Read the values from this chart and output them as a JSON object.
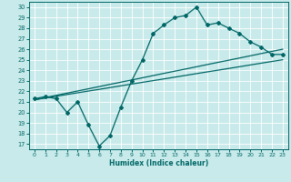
{
  "xlabel": "Humidex (Indice chaleur)",
  "bg_color": "#c8eaea",
  "grid_color": "#ffffff",
  "line_color": "#006666",
  "xlim": [
    -0.5,
    23.5
  ],
  "ylim": [
    16.5,
    30.5
  ],
  "yticks": [
    17,
    18,
    19,
    20,
    21,
    22,
    23,
    24,
    25,
    26,
    27,
    28,
    29,
    30
  ],
  "xticks": [
    0,
    1,
    2,
    3,
    4,
    5,
    6,
    7,
    8,
    9,
    10,
    11,
    12,
    13,
    14,
    15,
    16,
    17,
    18,
    19,
    20,
    21,
    22,
    23
  ],
  "line1_x": [
    0,
    1,
    2,
    3,
    4,
    5,
    6,
    7,
    8,
    9,
    10,
    11,
    12,
    13,
    14,
    15,
    16,
    17,
    18,
    19,
    20,
    21,
    22,
    23
  ],
  "line1_y": [
    21.3,
    21.5,
    21.3,
    20.0,
    21.0,
    18.8,
    16.8,
    17.8,
    20.5,
    23.0,
    25.0,
    27.5,
    28.3,
    29.0,
    29.2,
    30.0,
    28.3,
    28.5,
    28.0,
    27.5,
    26.7,
    26.2,
    25.5,
    25.5
  ],
  "line2_x": [
    0,
    23
  ],
  "line2_y": [
    21.2,
    26.0
  ],
  "line3_x": [
    0,
    23
  ],
  "line3_y": [
    21.2,
    25.0
  ],
  "figsize": [
    3.2,
    2.0
  ],
  "dpi": 100
}
